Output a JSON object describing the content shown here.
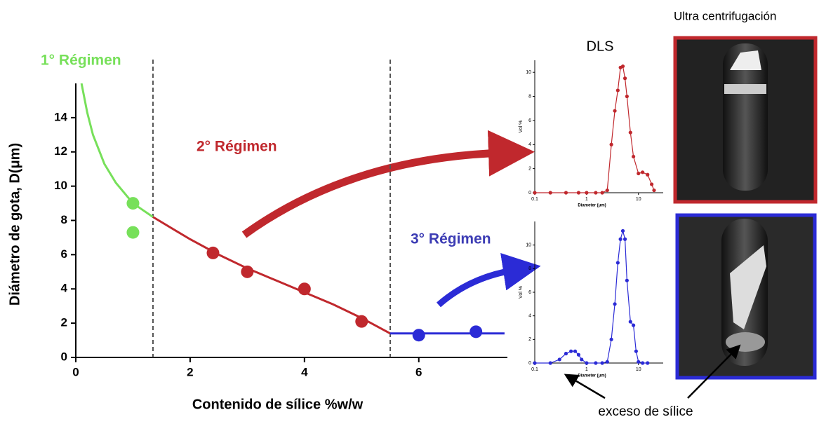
{
  "figure": {
    "dls_title": "DLS",
    "photo_title": "Ultra centrifugación",
    "annotation": "exceso de sílice"
  },
  "chart_data": [
    {
      "type": "scatter",
      "xlabel": "Contenido de sílice %w/w",
      "ylabel": "Diámetro de gota, D(μm)",
      "xlim": [
        0,
        7.55
      ],
      "ylim": [
        0,
        16
      ],
      "xticks": [
        0,
        2,
        4,
        6
      ],
      "yticks": [
        0,
        2,
        4,
        6,
        8,
        10,
        12,
        14
      ],
      "dividers": [
        1.35,
        5.5
      ],
      "annotations": [
        "1° Régimen",
        "2° Régimen",
        "3° Régimen"
      ],
      "annotation_colors": [
        "#77e05a",
        "#c0282d",
        "#3c3cb4"
      ],
      "series": [
        {
          "color": "#77e05a",
          "x": [
            1,
            1
          ],
          "values": [
            9,
            7.3
          ]
        },
        {
          "color": "#c0282d",
          "x": [
            2.4,
            3,
            4,
            5
          ],
          "values": [
            6.1,
            5,
            4,
            2.1
          ]
        },
        {
          "color": "#2b2bd6",
          "x": [
            6,
            7
          ],
          "values": [
            1.3,
            1.5
          ]
        }
      ],
      "lines": [
        {
          "color": "#77e05a",
          "x": [
            0.1,
            0.2,
            0.3,
            0.5,
            0.7,
            1.0,
            1.35
          ],
          "values": [
            16,
            14.3,
            13,
            11.3,
            10.2,
            9.0,
            8.2
          ]
        },
        {
          "color": "#c0282d",
          "x": [
            1.35,
            2,
            2.5,
            3,
            3.5,
            4,
            4.5,
            5,
            5.5
          ],
          "values": [
            8.2,
            6.9,
            6.0,
            5.2,
            4.5,
            3.8,
            3.1,
            2.3,
            1.4
          ]
        },
        {
          "color": "#2b2bd6",
          "x": [
            5.5,
            7.5
          ],
          "values": [
            1.4,
            1.4
          ]
        }
      ]
    },
    {
      "type": "line",
      "xlabel": "Diameter (μm)",
      "ylabel": "Vol %",
      "log_x": true,
      "xlim": [
        0.1,
        30
      ],
      "ylim": [
        0,
        11
      ],
      "xticks": [
        0.1,
        1,
        10
      ],
      "yticks": [
        0,
        2,
        4,
        6,
        8,
        10
      ],
      "series": [
        {
          "color": "#c0282d",
          "x": [
            0.1,
            0.2,
            0.4,
            0.7,
            1,
            1.5,
            2,
            2.5,
            3,
            3.5,
            4,
            4.5,
            5,
            5.5,
            6,
            7,
            8,
            10,
            12,
            15,
            18,
            20
          ],
          "values": [
            0,
            0,
            0,
            0,
            0,
            0,
            0,
            0.2,
            4,
            6.8,
            8.5,
            10.4,
            10.5,
            9.5,
            8,
            5,
            3,
            1.6,
            1.7,
            1.5,
            0.7,
            0.2
          ]
        }
      ]
    },
    {
      "type": "line",
      "xlabel": "Diameter (μm)",
      "ylabel": "Vol %",
      "log_x": true,
      "xlim": [
        0.1,
        30
      ],
      "ylim": [
        0,
        12
      ],
      "xticks": [
        0.1,
        1,
        10
      ],
      "yticks": [
        0,
        2,
        4,
        6,
        8,
        10
      ],
      "series": [
        {
          "color": "#2b2bd6",
          "x": [
            0.1,
            0.2,
            0.3,
            0.4,
            0.5,
            0.6,
            0.7,
            0.8,
            1,
            1.5,
            2,
            2.5,
            3,
            3.5,
            4,
            4.5,
            5,
            5.5,
            6,
            7,
            8,
            9,
            10,
            12,
            15
          ],
          "values": [
            0,
            0,
            0.3,
            0.8,
            1,
            1,
            0.7,
            0.3,
            0,
            0,
            0,
            0.1,
            2,
            5,
            8.5,
            10.5,
            11.2,
            10.5,
            7,
            3.5,
            3.2,
            1,
            0.1,
            0,
            0
          ]
        }
      ]
    }
  ]
}
